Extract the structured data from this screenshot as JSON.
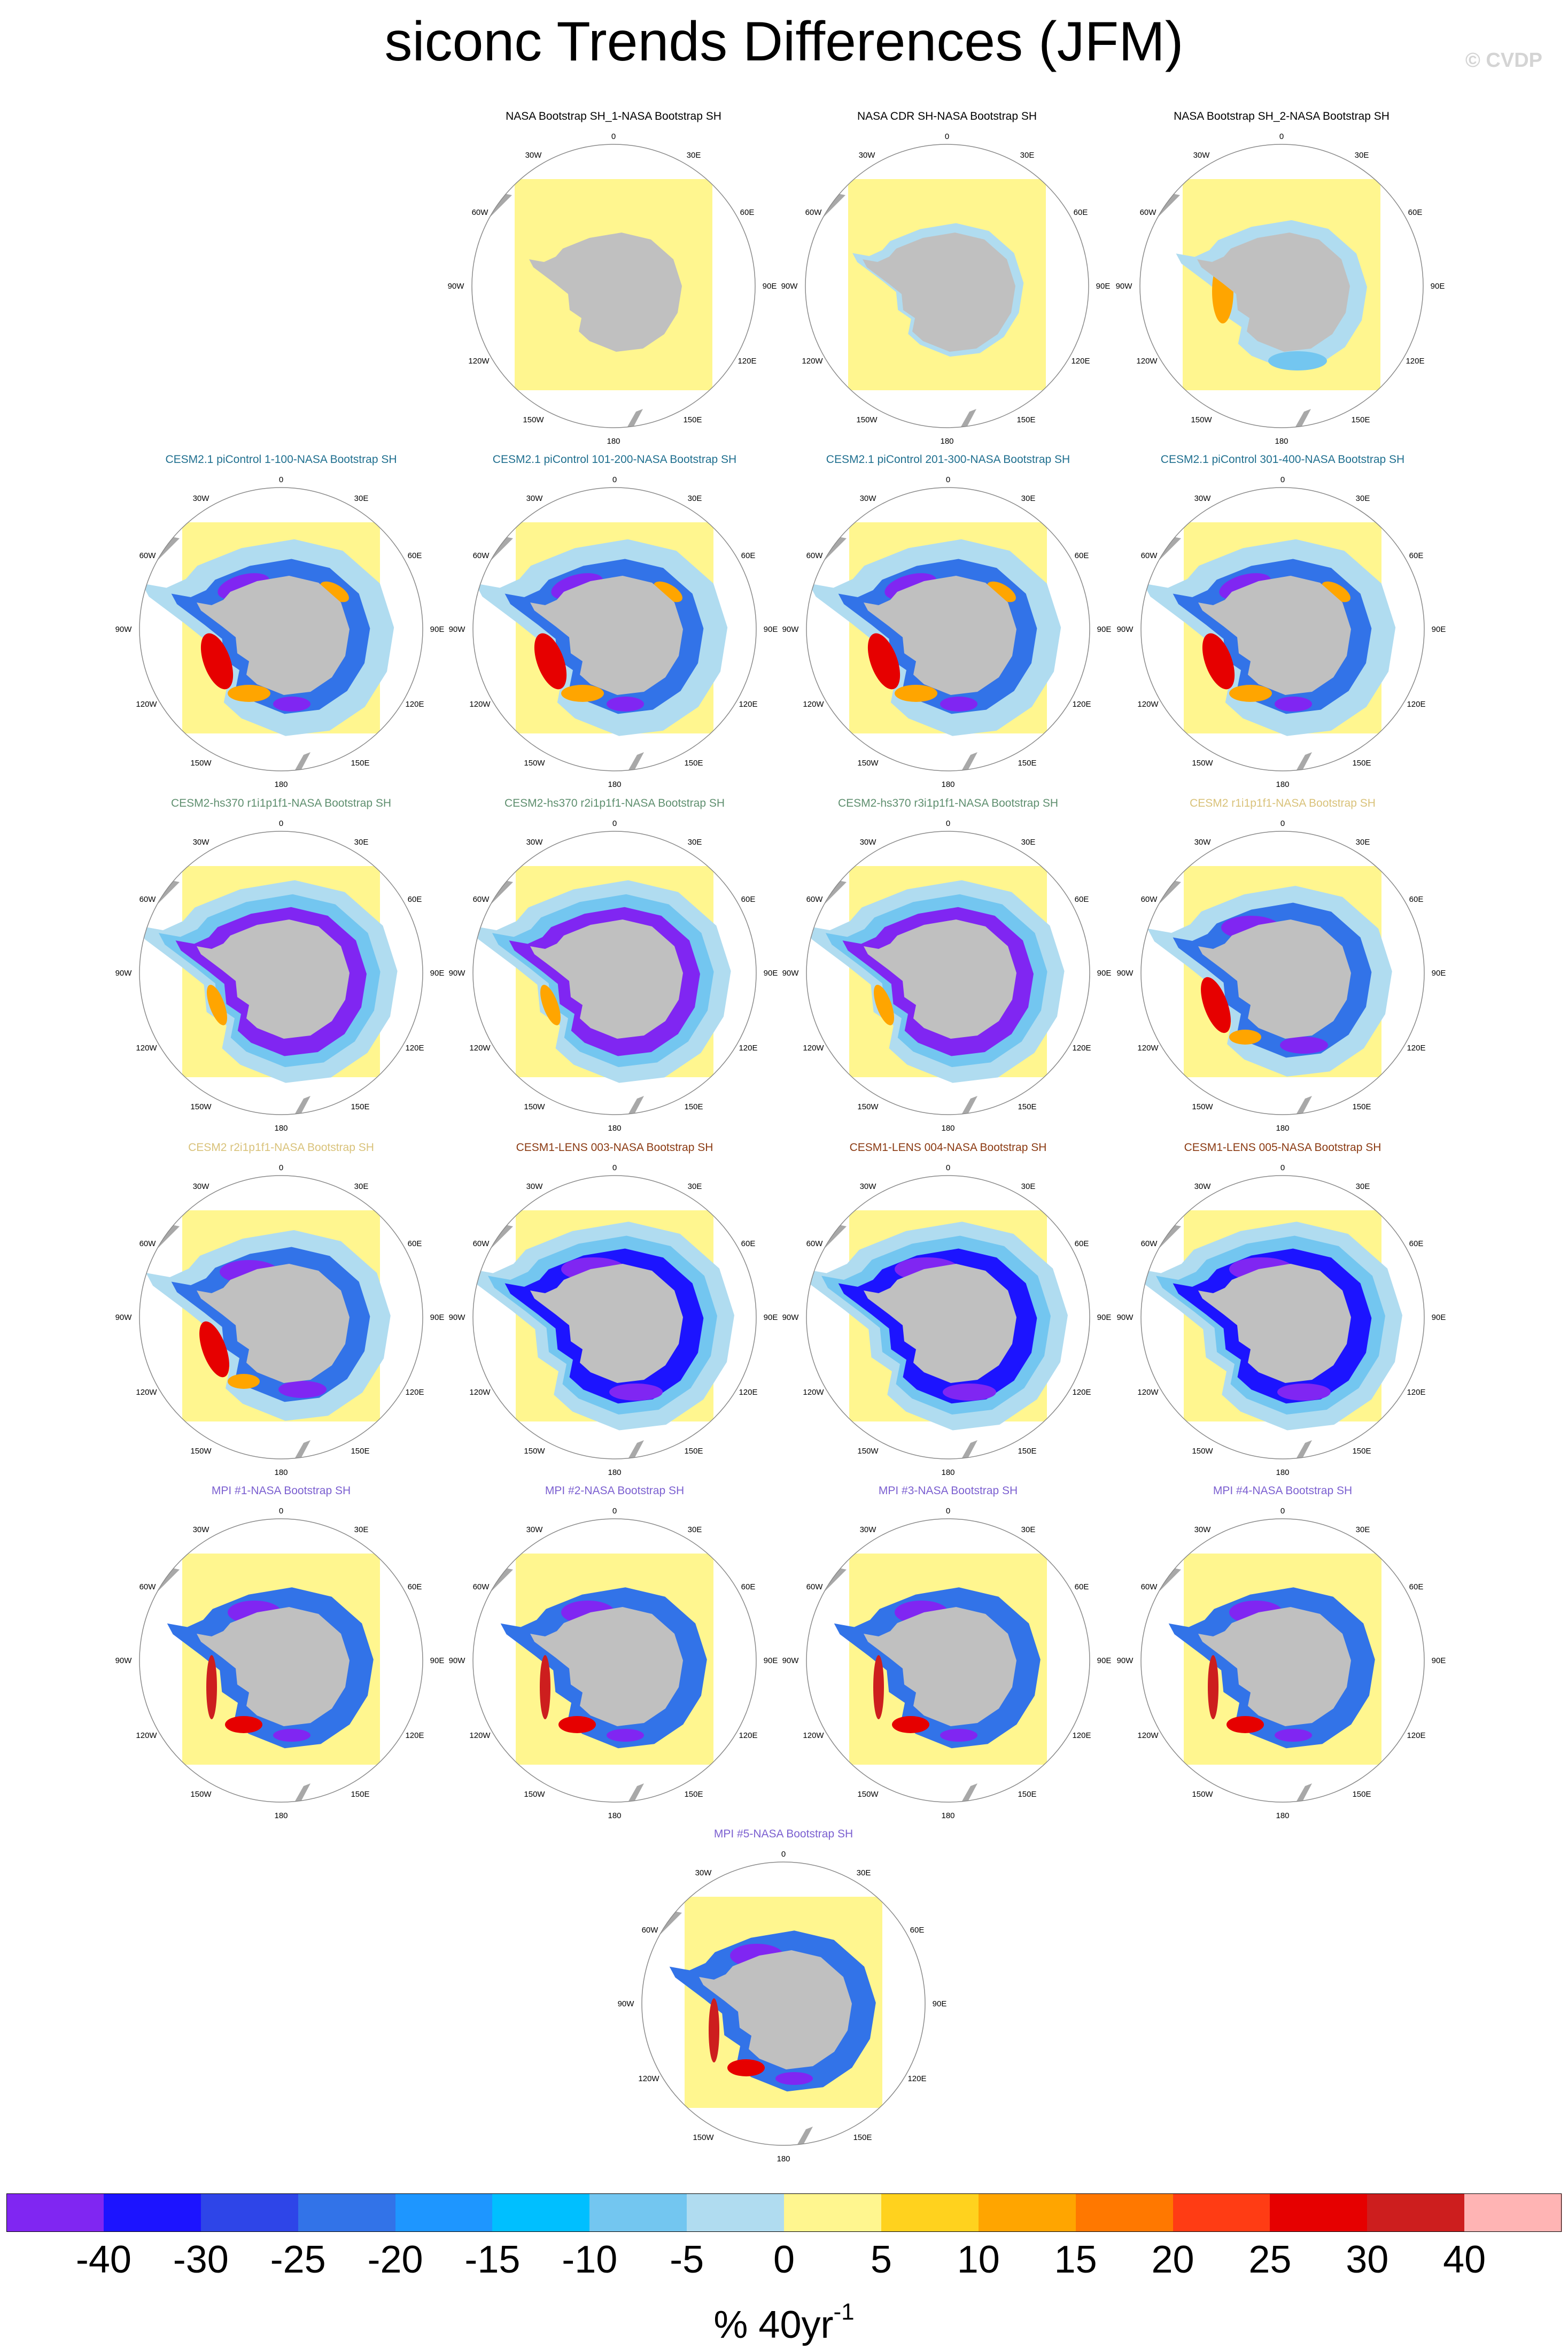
{
  "title": "siconc Trends Differences (JFM)",
  "copyright": "© CVDP",
  "map_labels": {
    "lon_0": "0",
    "lon_30e": "30E",
    "lon_60e": "60E",
    "lon_90e": "90E",
    "lon_120e": "120E",
    "lon_150e": "150E",
    "lon_180": "180",
    "lon_150w": "150W",
    "lon_120w": "120W",
    "lon_90w": "90W",
    "lon_60w": "60W",
    "lon_30w": "30W"
  },
  "panels": [
    {
      "title": "NASA Bootstrap SH_1-NASA Bootstrap SH",
      "title_color": "#000000",
      "pattern": "obs_zero"
    },
    {
      "title": "NASA CDR SH-NASA Bootstrap SH",
      "title_color": "#000000",
      "pattern": "obs_cdr"
    },
    {
      "title": "NASA Bootstrap SH_2-NASA Bootstrap SH",
      "title_color": "#000000",
      "pattern": "obs_b2"
    },
    {
      "title": "CESM2.1 piControl 1-100-NASA Bootstrap SH",
      "title_color": "#1f6f8f",
      "pattern": "picontrol"
    },
    {
      "title": "CESM2.1 piControl 101-200-NASA Bootstrap SH",
      "title_color": "#1f6f8f",
      "pattern": "picontrol"
    },
    {
      "title": "CESM2.1 piControl 201-300-NASA Bootstrap SH",
      "title_color": "#1f6f8f",
      "pattern": "picontrol"
    },
    {
      "title": "CESM2.1 piControl 301-400-NASA Bootstrap SH",
      "title_color": "#1f6f8f",
      "pattern": "picontrol"
    },
    {
      "title": "CESM2-hs370 r1i1p1f1-NASA Bootstrap SH",
      "title_color": "#5f8f6f",
      "pattern": "hs370"
    },
    {
      "title": "CESM2-hs370 r2i1p1f1-NASA Bootstrap SH",
      "title_color": "#5f8f6f",
      "pattern": "hs370"
    },
    {
      "title": "CESM2-hs370 r3i1p1f1-NASA Bootstrap SH",
      "title_color": "#5f8f6f",
      "pattern": "hs370"
    },
    {
      "title": "CESM2 r1i1p1f1-NASA Bootstrap SH",
      "title_color": "#d9c27a",
      "pattern": "cesm2"
    },
    {
      "title": "CESM2 r2i1p1f1-NASA Bootstrap SH",
      "title_color": "#d9c27a",
      "pattern": "cesm2"
    },
    {
      "title": "CESM1-LENS 003-NASA Bootstrap SH",
      "title_color": "#8b3a12",
      "pattern": "lens"
    },
    {
      "title": "CESM1-LENS 004-NASA Bootstrap SH",
      "title_color": "#8b3a12",
      "pattern": "lens"
    },
    {
      "title": "CESM1-LENS 005-NASA Bootstrap SH",
      "title_color": "#8b3a12",
      "pattern": "lens"
    },
    {
      "title": "MPI #1-NASA Bootstrap SH",
      "title_color": "#7b5fd0",
      "pattern": "mpi"
    },
    {
      "title": "MPI #2-NASA Bootstrap SH",
      "title_color": "#7b5fd0",
      "pattern": "mpi"
    },
    {
      "title": "MPI #3-NASA Bootstrap SH",
      "title_color": "#7b5fd0",
      "pattern": "mpi"
    },
    {
      "title": "MPI #4-NASA Bootstrap SH",
      "title_color": "#7b5fd0",
      "pattern": "mpi"
    },
    {
      "title": "MPI #5-NASA Bootstrap SH",
      "title_color": "#7b5fd0",
      "pattern": "mpi"
    }
  ],
  "colorbar": {
    "colors": [
      "#8026f2",
      "#1c14ff",
      "#2e45e8",
      "#3273e8",
      "#1e96ff",
      "#00bfff",
      "#73c6f0",
      "#b0dcf0",
      "#fff68f",
      "#ffd21e",
      "#ffa500",
      "#ff7800",
      "#ff3c14",
      "#e60000",
      "#cd1e1e",
      "#ffb4b4"
    ],
    "ticks": [
      "-40",
      "-30",
      "-25",
      "-20",
      "-15",
      "-10",
      "-5",
      "0",
      "5",
      "10",
      "15",
      "20",
      "25",
      "30",
      "40"
    ],
    "units": "% 40yr",
    "units_sup": "-1"
  }
}
